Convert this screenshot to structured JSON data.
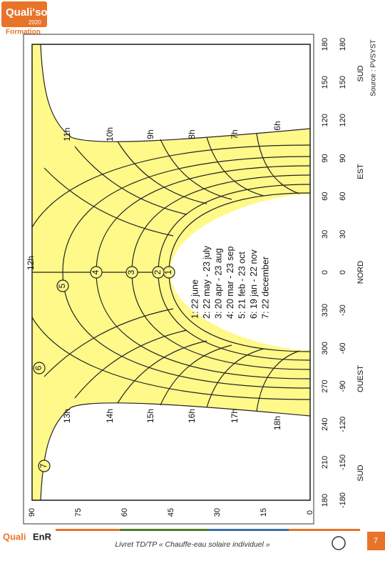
{
  "header": {
    "logo": "Quali'sol",
    "logo_year": "2020",
    "subtitle": "Formation"
  },
  "source": "Source : PVSYST",
  "diagram": {
    "elevation_ticks": [
      90,
      75,
      60,
      45,
      30,
      15,
      0
    ],
    "azimuth_ticks": [
      180,
      150,
      120,
      90,
      60,
      30,
      0,
      330,
      300,
      270,
      240,
      210,
      180
    ],
    "azimuth_signed_ticks": [
      180,
      150,
      120,
      90,
      60,
      30,
      0,
      -30,
      -60,
      -90,
      -120,
      -150,
      -180
    ],
    "directions": [
      "SUD",
      "EST",
      "NORD",
      "OUEST",
      "SUD"
    ],
    "hours_morning": [
      "11h",
      "10h",
      "9h",
      "8h",
      "7h",
      "6h"
    ],
    "hours_afternoon": [
      "13h",
      "14h",
      "15h",
      "16h",
      "17h",
      "18h"
    ],
    "noon": "12h",
    "curve_numbers": [
      "1",
      "2",
      "3",
      "4",
      "5",
      "6",
      "7"
    ],
    "legend": [
      "1: 22 june",
      "2: 22 may - 23 july",
      "3: 20 apr - 23 aug",
      "4: 20 mar - 23 sep",
      "5: 21 feb - 23 oct",
      "6: 19 jan - 22 nov",
      "7: 22 december"
    ]
  },
  "footer": {
    "logo": "Quali",
    "logo_b": "EnR",
    "text": "Livret TD/TP « Chauffe-eau solaire individuel »",
    "page": "7"
  }
}
